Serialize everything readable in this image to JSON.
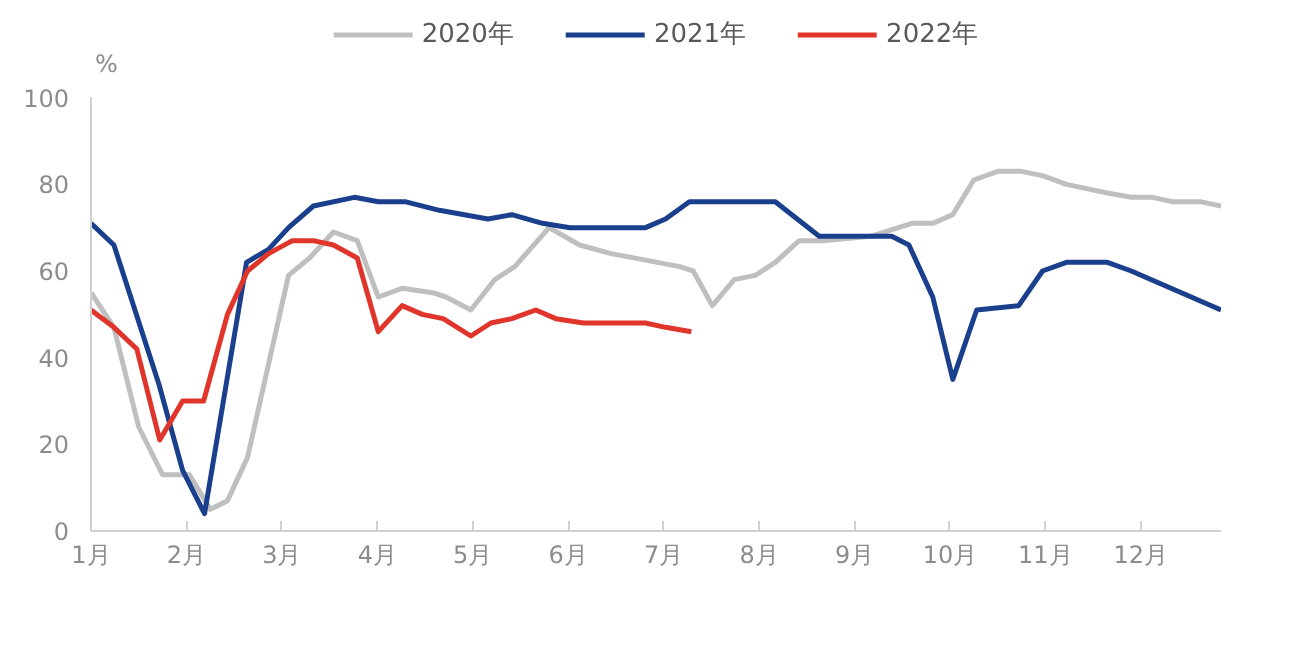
{
  "chart_data": {
    "type": "line",
    "ylabel": "%",
    "ylim": [
      0,
      100
    ],
    "yticks": [
      0,
      20,
      40,
      60,
      80,
      100
    ],
    "xlim": [
      1,
      12.84
    ],
    "xticks": [
      {
        "value": 1,
        "label": "1月"
      },
      {
        "value": 2,
        "label": "2月"
      },
      {
        "value": 3,
        "label": "3月"
      },
      {
        "value": 4,
        "label": "4月"
      },
      {
        "value": 5,
        "label": "5月"
      },
      {
        "value": 6,
        "label": "6月"
      },
      {
        "value": 7,
        "label": "7月"
      },
      {
        "value": 8,
        "label": "8月"
      },
      {
        "value": 9,
        "label": "9月"
      },
      {
        "value": 10,
        "label": "10月"
      },
      {
        "value": 11,
        "label": "11月"
      },
      {
        "value": 12,
        "label": "12月"
      }
    ],
    "grid": false,
    "legend": "top",
    "marker": "none",
    "line_style": "solid",
    "series": [
      {
        "name": "2020年",
        "color": "#bfbfbf",
        "x": [
          1,
          1.24,
          1.5,
          1.75,
          2.03,
          2.25,
          2.43,
          2.64,
          3.07,
          3.29,
          3.54,
          3.79,
          4.01,
          4.26,
          4.58,
          4.72,
          4.98,
          5.23,
          5.44,
          5.8,
          6.12,
          6.45,
          7.17,
          7.31,
          7.51,
          7.74,
          7.96,
          8.17,
          8.42,
          8.67,
          9.17,
          9.6,
          9.82,
          10.03,
          10.25,
          10.5,
          10.75,
          10.97,
          11.22,
          11.65,
          11.9,
          12.12,
          12.33,
          12.62,
          12.84
        ],
        "values": [
          55,
          47,
          24,
          13,
          13,
          5,
          7,
          17,
          59,
          63,
          69,
          67,
          54,
          56,
          55,
          54,
          51,
          58,
          61,
          70,
          66,
          64,
          61,
          60,
          52,
          58,
          59,
          62,
          67,
          67,
          68,
          71,
          71,
          73,
          81,
          83,
          83,
          82,
          80,
          78,
          77,
          77,
          76,
          76,
          75
        ]
      },
      {
        "name": "2021年",
        "color": "#1a3f8c",
        "x": [
          1,
          1.24,
          1.71,
          1.96,
          2.19,
          2.63,
          2.86,
          3.07,
          3.33,
          3.76,
          4.01,
          4.29,
          4.65,
          5.16,
          5.41,
          5.73,
          6.02,
          6.45,
          6.81,
          7.02,
          7.27,
          7.52,
          8.17,
          8.63,
          9.17,
          9.39,
          9.57,
          9.82,
          10.03,
          10.28,
          10.72,
          10.97,
          11.22,
          11.65,
          11.9,
          12.84
        ],
        "values": [
          71,
          66,
          34,
          14,
          4,
          62,
          65,
          70,
          75,
          77,
          76,
          76,
          74,
          72,
          73,
          71,
          70,
          70,
          70,
          72,
          76,
          76,
          76,
          68,
          68,
          68,
          66,
          54,
          35,
          51,
          52,
          60,
          62,
          62,
          60,
          51
        ]
      },
      {
        "name": "2022年",
        "color": "#e0352b",
        "x": [
          1,
          1.24,
          1.48,
          1.72,
          1.96,
          2.18,
          2.43,
          2.64,
          2.86,
          3.11,
          3.33,
          3.54,
          3.79,
          4.01,
          4.26,
          4.47,
          4.69,
          4.98,
          5.19,
          5.41,
          5.66,
          5.87,
          6.16,
          6.38,
          6.66,
          6.81,
          7.02,
          7.29
        ],
        "values": [
          51,
          47,
          42,
          21,
          30,
          30,
          50,
          60,
          64,
          67,
          67,
          66,
          63,
          46,
          52,
          50,
          49,
          45,
          48,
          49,
          51,
          49,
          48,
          48,
          48,
          48,
          47,
          46
        ]
      }
    ]
  }
}
